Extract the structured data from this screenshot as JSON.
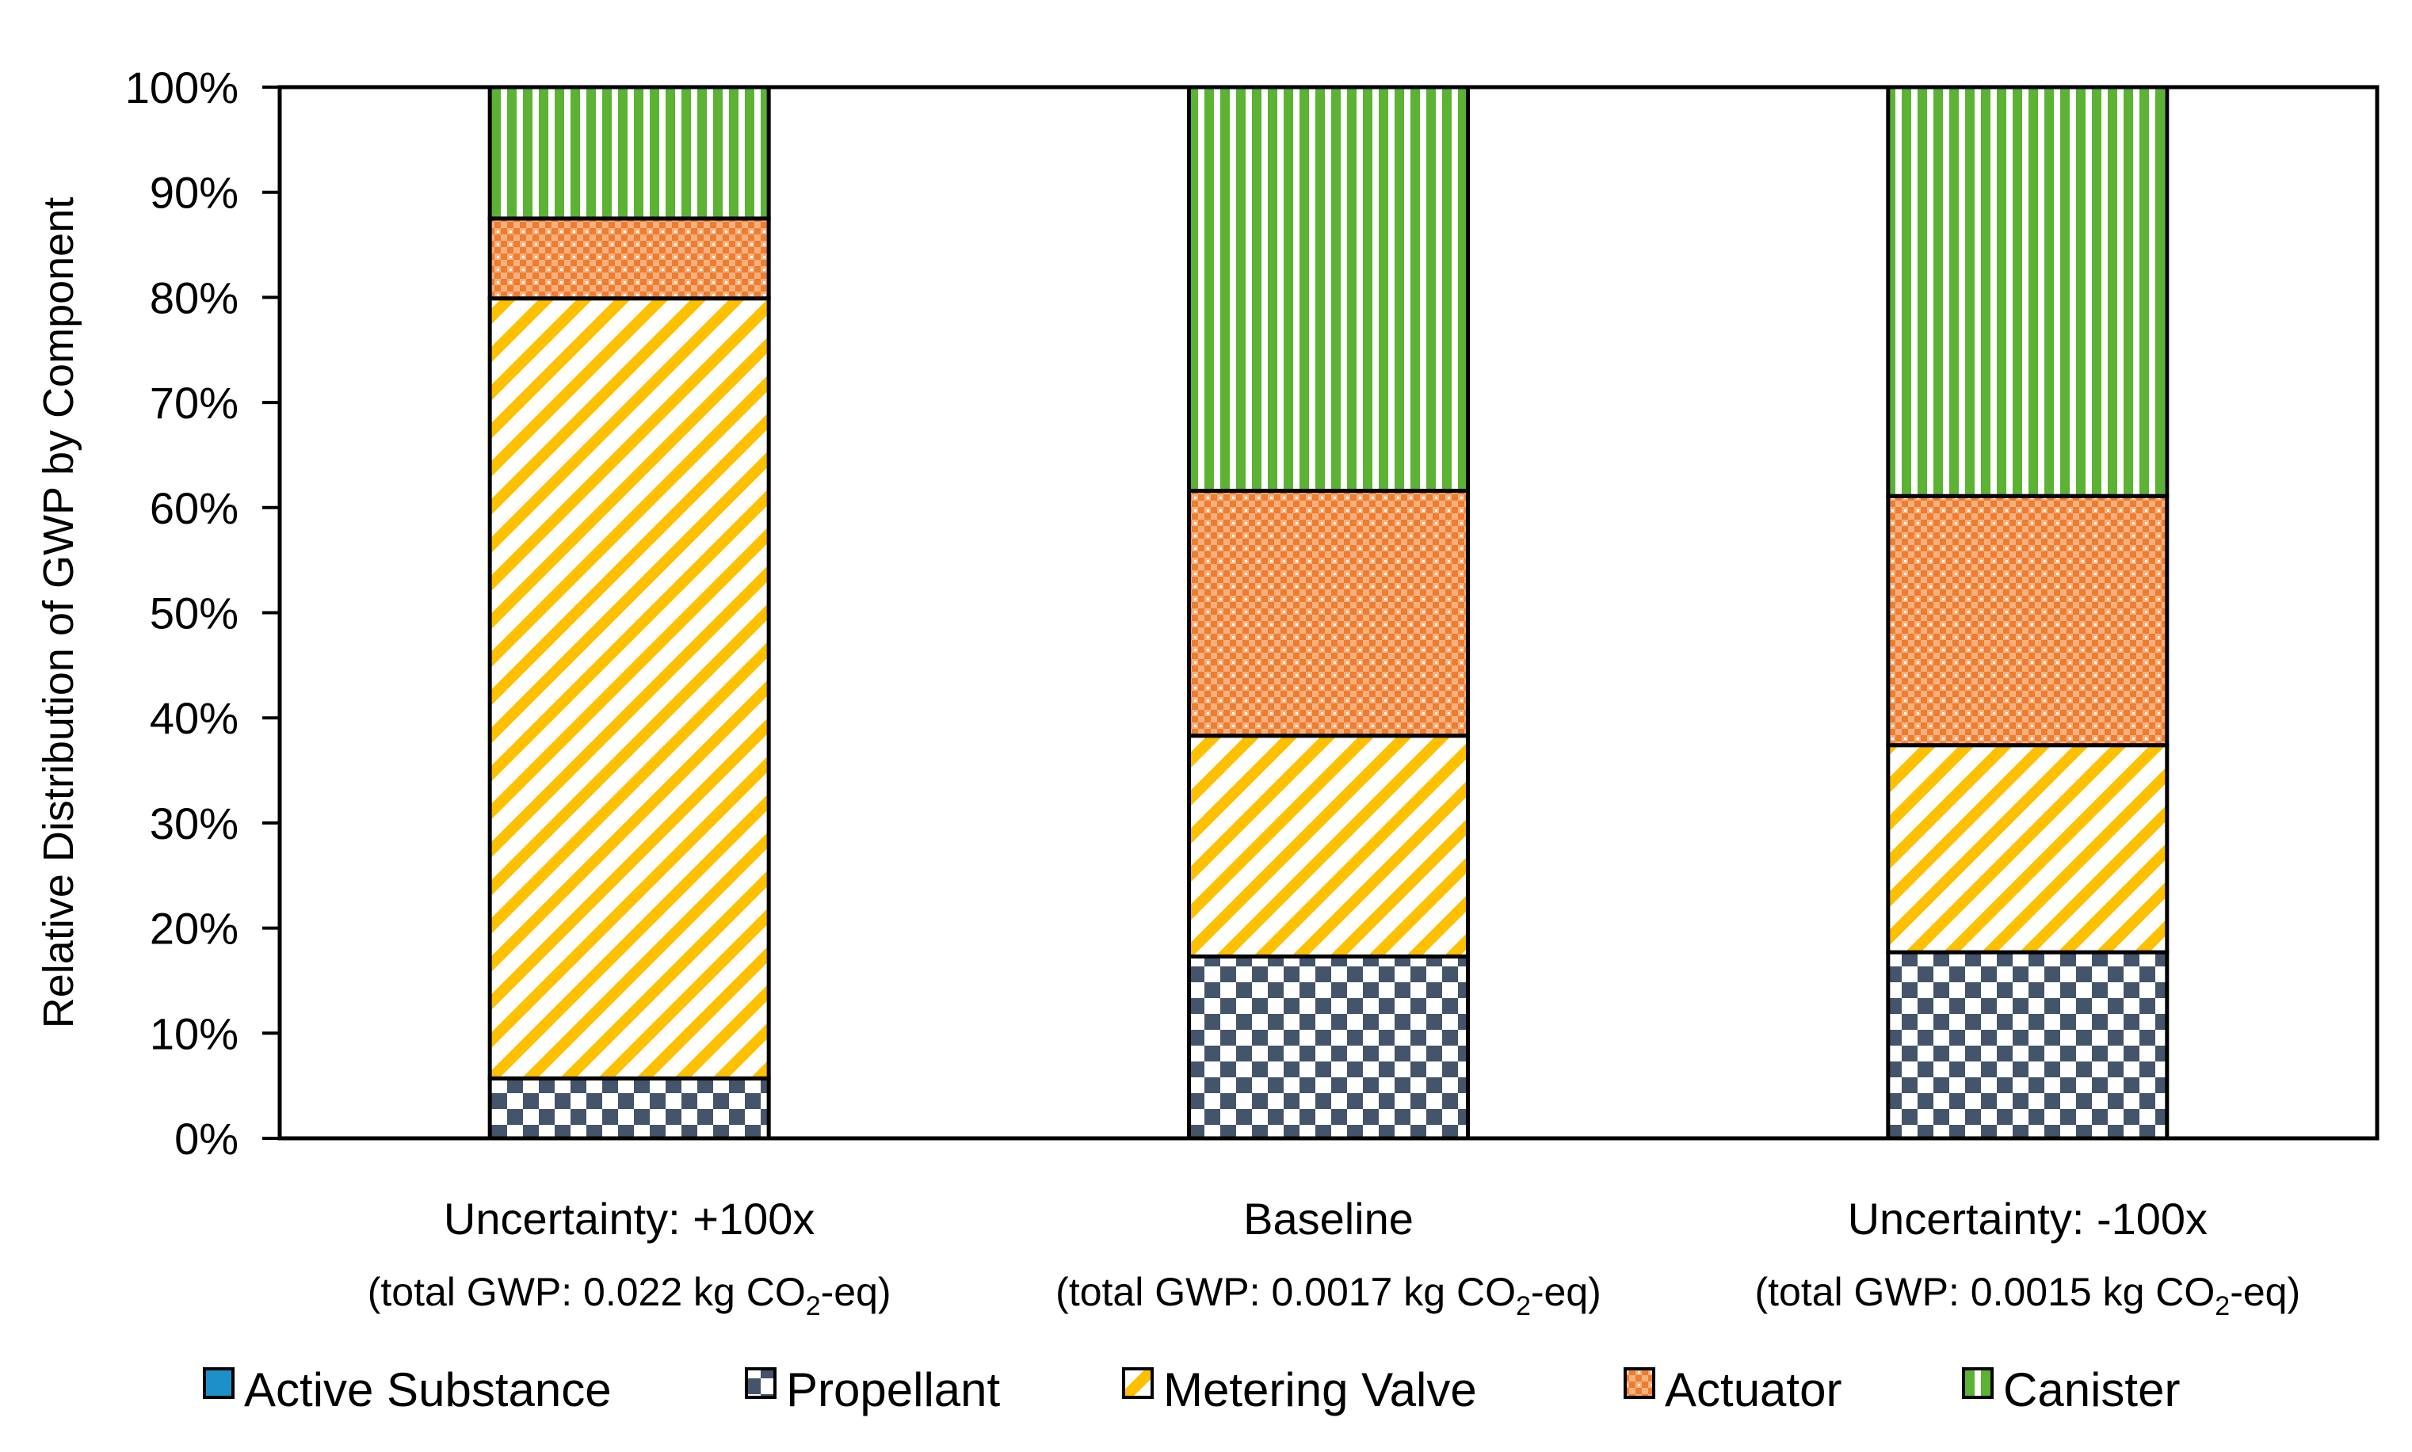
{
  "chart_data": {
    "type": "bar",
    "stacked": true,
    "title": "",
    "xlabel": "",
    "ylabel": "Relative Distribution of GWP by Component",
    "ylim": [
      0,
      100
    ],
    "yticks": [
      "0%",
      "10%",
      "20%",
      "30%",
      "40%",
      "50%",
      "60%",
      "70%",
      "80%",
      "90%",
      "100%"
    ],
    "categories": [
      {
        "label": "Uncertainty: +100x",
        "sub_prefix": "(total GWP: 0.022 kg CO",
        "sub_subscript": "2",
        "sub_suffix": "-eq)"
      },
      {
        "label": "Baseline",
        "sub_prefix": "(total GWP: 0.0017 kg CO",
        "sub_subscript": "2",
        "sub_suffix": "-eq)"
      },
      {
        "label": "Uncertainty: -100x",
        "sub_prefix": "(total GWP: 0.0015 kg CO",
        "sub_subscript": "2",
        "sub_suffix": "-eq)"
      }
    ],
    "series": [
      {
        "name": "Active Substance",
        "values": [
          0.0,
          0.0,
          0.0
        ],
        "pattern": "solid",
        "color": "#1E90C8"
      },
      {
        "name": "Propellant",
        "values": [
          5.7,
          17.3,
          17.7
        ],
        "pattern": "checker",
        "color": "#44546A"
      },
      {
        "name": "Metering Valve",
        "values": [
          74.2,
          21.0,
          19.7
        ],
        "pattern": "diagonal",
        "color": "#FFC000"
      },
      {
        "name": "Actuator",
        "values": [
          7.6,
          23.3,
          23.7
        ],
        "pattern": "dots",
        "color": "#ED7D31"
      },
      {
        "name": "Canister",
        "values": [
          12.5,
          38.4,
          38.9
        ],
        "pattern": "vertical",
        "color": "#5BB233"
      }
    ],
    "legend_position": "bottom"
  }
}
